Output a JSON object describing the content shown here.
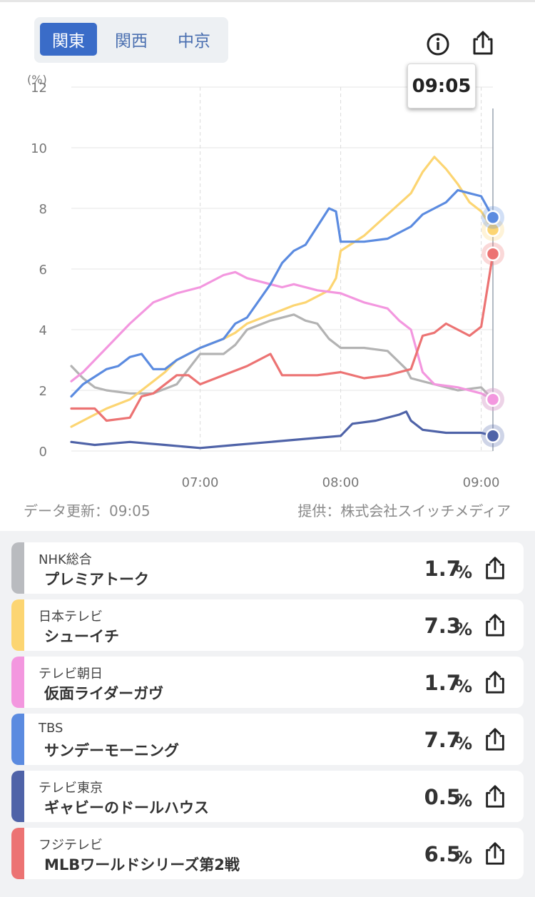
{
  "region_tabs": [
    {
      "label": "関東",
      "active": true
    },
    {
      "label": "関西",
      "active": false
    },
    {
      "label": "中京",
      "active": false
    }
  ],
  "icons": {
    "info": "info-icon",
    "share": "share-icon"
  },
  "tooltip": {
    "time": "09:05"
  },
  "footer": {
    "updated": "データ更新：09:05",
    "source": "提供：株式会社スイッチメディア"
  },
  "chart_data": {
    "type": "line",
    "y_unit": "(%)",
    "ylim": [
      0,
      12
    ],
    "yticks": [
      "0",
      "2",
      "4",
      "6",
      "8",
      "10",
      "12"
    ],
    "xticks": [
      {
        "t": "07:00",
        "label": "07:00"
      },
      {
        "t": "08:00",
        "label": "08:00"
      },
      {
        "t": "09:00",
        "label": "09:00"
      }
    ],
    "x_range": [
      "06:05",
      "09:05"
    ],
    "grid": true,
    "cursor_time": "09:05",
    "series": [
      {
        "channel": "NHK総合",
        "color": "#b3b3b3",
        "t": [
          "06:05",
          "06:10",
          "06:15",
          "06:20",
          "06:30",
          "06:40",
          "06:50",
          "07:00",
          "07:10",
          "07:15",
          "07:20",
          "07:30",
          "07:40",
          "07:45",
          "07:50",
          "07:55",
          "08:00",
          "08:10",
          "08:20",
          "08:28",
          "08:30",
          "08:35",
          "08:40",
          "08:50",
          "09:00",
          "09:05"
        ],
        "v": [
          2.8,
          2.4,
          2.1,
          2.0,
          1.9,
          1.9,
          2.2,
          3.2,
          3.2,
          3.5,
          4.0,
          4.3,
          4.5,
          4.3,
          4.2,
          3.7,
          3.4,
          3.4,
          3.3,
          2.7,
          2.4,
          2.3,
          2.2,
          2.0,
          2.1,
          1.7
        ]
      },
      {
        "channel": "日本テレビ",
        "color": "#fcd572",
        "t": [
          "06:05",
          "06:10",
          "06:15",
          "06:20",
          "06:30",
          "06:35",
          "06:40",
          "06:45",
          "06:50",
          "07:00",
          "07:10",
          "07:15",
          "07:20",
          "07:30",
          "07:40",
          "07:45",
          "07:50",
          "07:55",
          "07:58",
          "08:00",
          "08:10",
          "08:20",
          "08:30",
          "08:35",
          "08:40",
          "08:45",
          "08:50",
          "08:55",
          "09:00",
          "09:05"
        ],
        "v": [
          0.8,
          1.0,
          1.2,
          1.4,
          1.7,
          2.0,
          2.3,
          2.6,
          3.0,
          3.4,
          3.7,
          3.9,
          4.2,
          4.5,
          4.8,
          4.9,
          5.1,
          5.3,
          5.7,
          6.6,
          7.1,
          7.8,
          8.5,
          9.2,
          9.7,
          9.3,
          8.8,
          8.2,
          7.9,
          7.3
        ]
      },
      {
        "channel": "テレビ朝日",
        "color": "#f397df",
        "t": [
          "06:05",
          "06:10",
          "06:20",
          "06:30",
          "06:40",
          "06:50",
          "07:00",
          "07:10",
          "07:15",
          "07:20",
          "07:30",
          "07:35",
          "07:40",
          "07:50",
          "08:00",
          "08:10",
          "08:15",
          "08:20",
          "08:25",
          "08:30",
          "08:35",
          "08:40",
          "08:50",
          "09:00",
          "09:05"
        ],
        "v": [
          2.3,
          2.6,
          3.4,
          4.2,
          4.9,
          5.2,
          5.4,
          5.8,
          5.9,
          5.7,
          5.5,
          5.4,
          5.5,
          5.3,
          5.2,
          4.9,
          4.8,
          4.7,
          4.3,
          4.0,
          2.6,
          2.2,
          2.1,
          1.9,
          1.7
        ]
      },
      {
        "channel": "TBS",
        "color": "#5b8be0",
        "t": [
          "06:05",
          "06:10",
          "06:20",
          "06:25",
          "06:30",
          "06:35",
          "06:40",
          "06:45",
          "06:50",
          "07:00",
          "07:10",
          "07:15",
          "07:20",
          "07:30",
          "07:35",
          "07:40",
          "07:45",
          "07:50",
          "07:55",
          "07:58",
          "08:00",
          "08:10",
          "08:20",
          "08:30",
          "08:35",
          "08:40",
          "08:45",
          "08:50",
          "08:55",
          "09:00",
          "09:05"
        ],
        "v": [
          1.8,
          2.2,
          2.7,
          2.8,
          3.1,
          3.2,
          2.7,
          2.7,
          3.0,
          3.4,
          3.7,
          4.2,
          4.4,
          5.5,
          6.2,
          6.6,
          6.8,
          7.4,
          8.0,
          7.9,
          6.9,
          6.9,
          7.0,
          7.4,
          7.8,
          8.0,
          8.2,
          8.6,
          8.5,
          8.4,
          7.7
        ]
      },
      {
        "channel": "テレビ東京",
        "color": "#4f63a8",
        "t": [
          "06:05",
          "06:15",
          "06:30",
          "06:45",
          "07:00",
          "07:15",
          "07:30",
          "07:45",
          "08:00",
          "08:05",
          "08:15",
          "08:25",
          "08:28",
          "08:30",
          "08:35",
          "08:45",
          "09:00",
          "09:05"
        ],
        "v": [
          0.3,
          0.2,
          0.3,
          0.2,
          0.1,
          0.2,
          0.3,
          0.4,
          0.5,
          0.9,
          1.0,
          1.2,
          1.3,
          1.0,
          0.7,
          0.6,
          0.6,
          0.5
        ]
      },
      {
        "channel": "フジテレビ",
        "color": "#ec7373",
        "t": [
          "06:05",
          "06:15",
          "06:20",
          "06:30",
          "06:35",
          "06:40",
          "06:50",
          "06:55",
          "07:00",
          "07:10",
          "07:20",
          "07:30",
          "07:35",
          "07:40",
          "07:50",
          "08:00",
          "08:10",
          "08:20",
          "08:30",
          "08:35",
          "08:40",
          "08:45",
          "08:50",
          "08:55",
          "09:00",
          "09:05"
        ],
        "v": [
          1.4,
          1.4,
          1.0,
          1.1,
          1.8,
          1.9,
          2.5,
          2.5,
          2.2,
          2.5,
          2.8,
          3.2,
          2.5,
          2.5,
          2.5,
          2.6,
          2.4,
          2.5,
          2.7,
          3.8,
          3.9,
          4.2,
          4.0,
          3.8,
          4.1,
          6.5
        ]
      }
    ]
  },
  "programs": [
    {
      "channel": "NHK総合",
      "title": "プレミアトーク",
      "value": "1.7",
      "unit": "%",
      "color": "#b9bbbf"
    },
    {
      "channel": "日本テレビ",
      "title": "シューイチ",
      "value": "7.3",
      "unit": "%",
      "color": "#fcd572"
    },
    {
      "channel": "テレビ朝日",
      "title": "仮面ライダーガヴ",
      "value": "1.7",
      "unit": "%",
      "color": "#f397df"
    },
    {
      "channel": "TBS",
      "title": "サンデーモーニング",
      "value": "7.7",
      "unit": "%",
      "color": "#5b8be0"
    },
    {
      "channel": "テレビ東京",
      "title": "ギャビーのドールハウス",
      "value": "0.5",
      "unit": "%",
      "color": "#4f63a8"
    },
    {
      "channel": "フジテレビ",
      "title": "MLBワールドシリーズ第2戦",
      "value": "6.5",
      "unit": "%",
      "color": "#ec7373"
    }
  ]
}
